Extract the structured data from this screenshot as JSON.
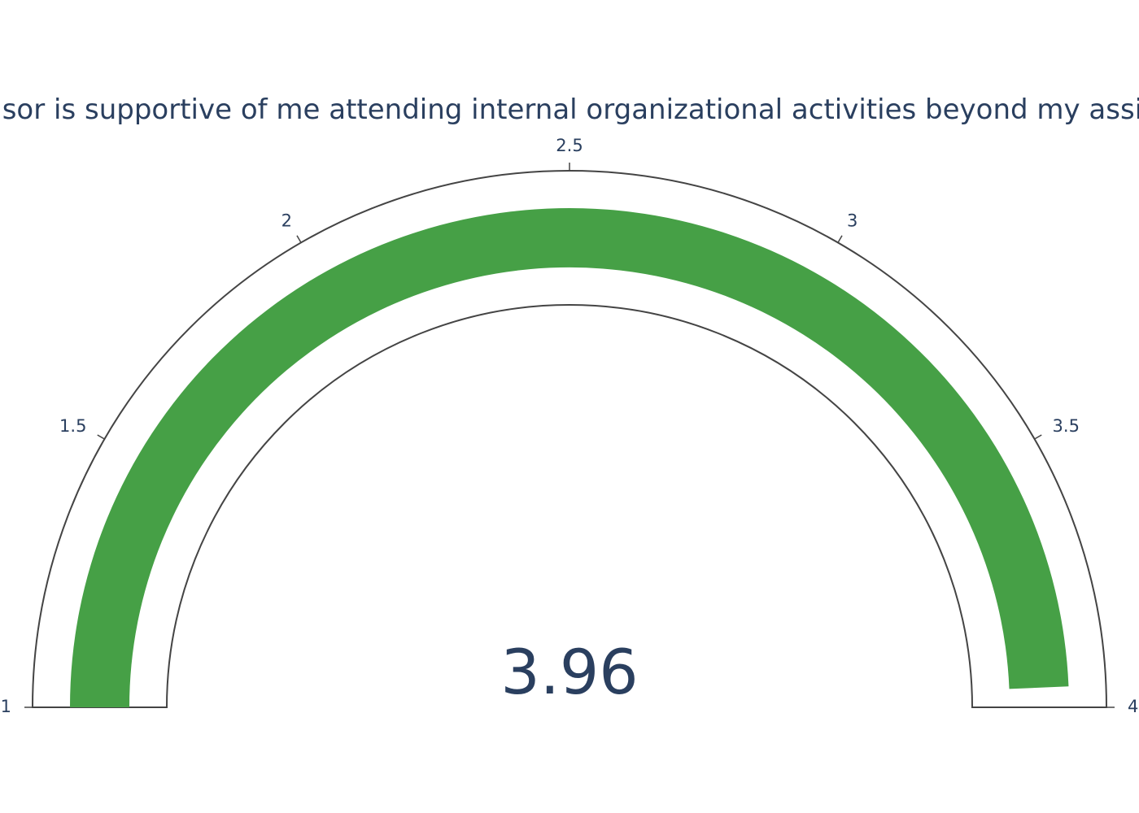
{
  "chart_data": {
    "type": "gauge",
    "title": "My supervisor is supportive of me attending internal organizational activities beyond my assigned work",
    "value": 3.96,
    "value_label": "3.96",
    "range": [
      1,
      4
    ],
    "ticks": [
      1,
      1.5,
      2,
      2.5,
      3,
      3.5,
      4
    ],
    "tick_labels": [
      "1",
      "1.5",
      "2",
      "2.5",
      "3",
      "3.5",
      "4"
    ],
    "bar_color": "#46a046",
    "outline_color": "#444444",
    "text_color": "#2a3f5f"
  }
}
